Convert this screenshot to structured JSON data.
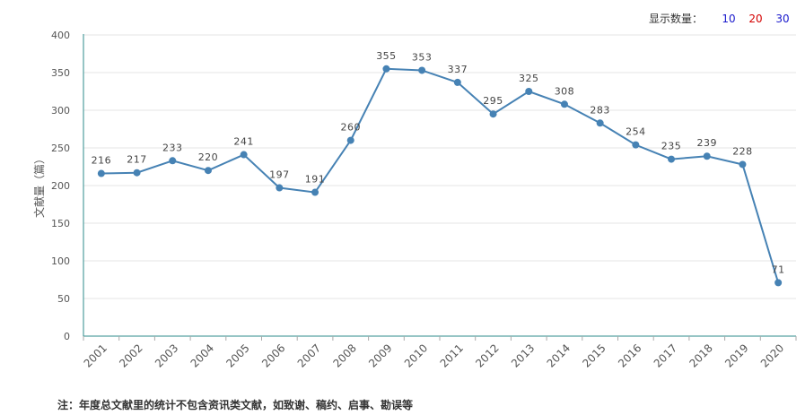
{
  "controls": {
    "label": "显示数量：",
    "options": [
      {
        "label": "10",
        "color": "#1a1acc"
      },
      {
        "label": "20",
        "color": "#d40000"
      },
      {
        "label": "30",
        "color": "#1a1acc"
      }
    ]
  },
  "chart_data": {
    "type": "line",
    "title": "",
    "xlabel": "",
    "ylabel": "文献量（篇）",
    "ylim": [
      0,
      400
    ],
    "yticks": [
      0,
      50,
      100,
      150,
      200,
      250,
      300,
      350,
      400
    ],
    "categories": [
      "2001",
      "2002",
      "2003",
      "2004",
      "2005",
      "2006",
      "2007",
      "2008",
      "2009",
      "2010",
      "2011",
      "2012",
      "2013",
      "2014",
      "2015",
      "2016",
      "2017",
      "2018",
      "2019",
      "2020"
    ],
    "series": [
      {
        "values": [
          216,
          217,
          233,
          220,
          241,
          197,
          191,
          260,
          355,
          353,
          337,
          295,
          325,
          308,
          283,
          254,
          235,
          239,
          228,
          71
        ],
        "color": "#4682b4"
      }
    ],
    "grid": true,
    "data_labels": true
  },
  "footnote": "注：年度总文献里的统计不包含资讯类文献，如致谢、稿约、启事、勘误等"
}
